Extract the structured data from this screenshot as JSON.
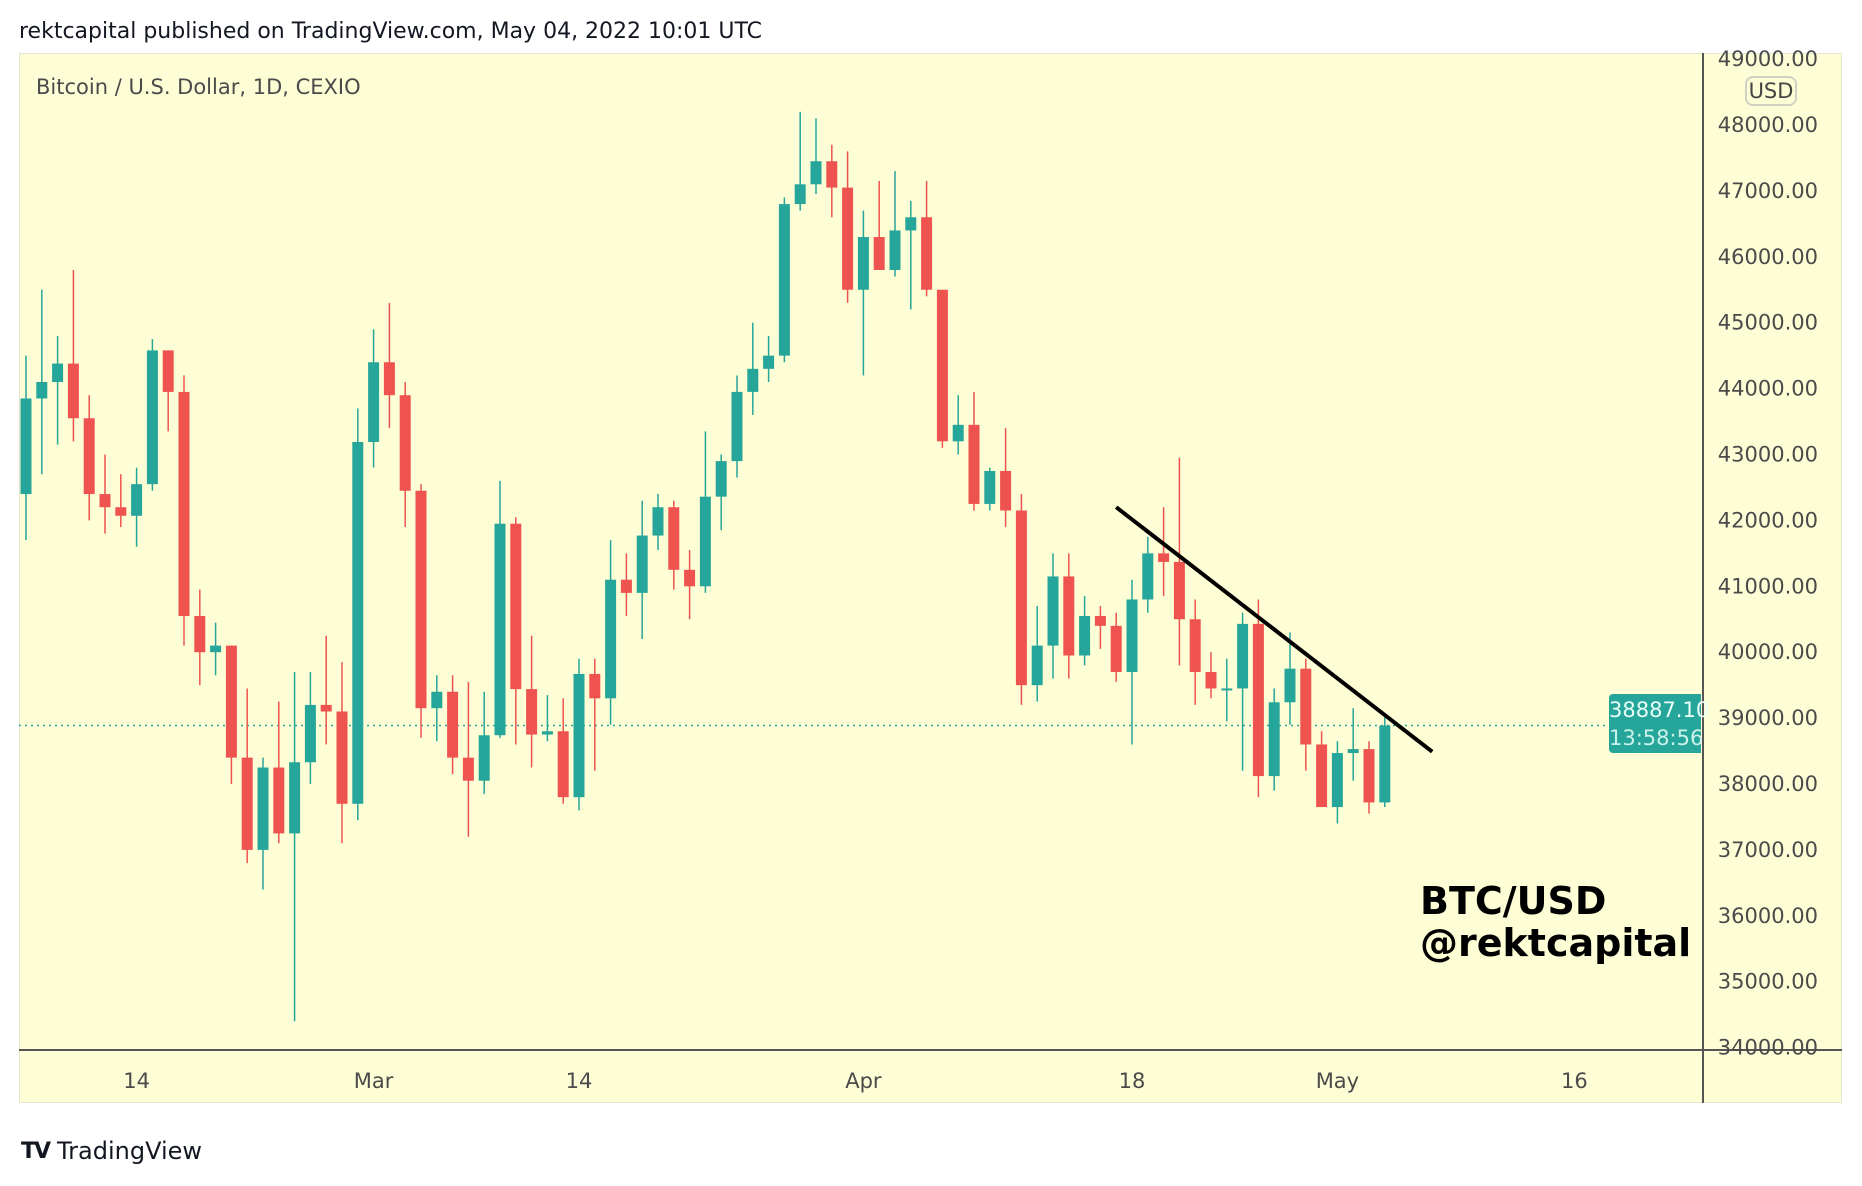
{
  "header": {
    "published": "rektcapital published on TradingView.com, May 04, 2022 10:01 UTC"
  },
  "symbol_title": "Bitcoin / U.S. Dollar, 1D, CEXIO",
  "currency_badge": "USD",
  "last_price": {
    "value": "38887.10",
    "countdown": "13:58:56"
  },
  "signature": {
    "line1": "BTC/USD",
    "line2": "@rektcapital"
  },
  "footer": {
    "brand": "TradingView",
    "logo_mark": "TV"
  },
  "colors": {
    "up": "#26a69a",
    "down": "#ef5350",
    "background": "#fefed6",
    "trendline": "#000000"
  },
  "chart_data": {
    "type": "candlestick",
    "title": "Bitcoin / U.S. Dollar, 1D, CEXIO",
    "start_date": "2022-02-07",
    "interval": "1D",
    "ylim": [
      34000,
      49000
    ],
    "y_ticks": [
      "34000.00",
      "35000.00",
      "36000.00",
      "37000.00",
      "38000.00",
      "39000.00",
      "40000.00",
      "41000.00",
      "42000.00",
      "43000.00",
      "44000.00",
      "45000.00",
      "46000.00",
      "47000.00",
      "48000.00",
      "49000.00"
    ],
    "x_ticks": [
      {
        "label": "14",
        "day_index": 7
      },
      {
        "label": "Mar",
        "day_index": 22
      },
      {
        "label": "14",
        "day_index": 35
      },
      {
        "label": "Apr",
        "day_index": 53
      },
      {
        "label": "18",
        "day_index": 70
      },
      {
        "label": "May",
        "day_index": 83
      },
      {
        "label": "16",
        "day_index": 98
      }
    ],
    "x_range_days": [
      -0.5,
      106.5
    ],
    "ohlc": [
      [
        42400,
        44500,
        41700,
        43850
      ],
      [
        43850,
        45500,
        42700,
        44100
      ],
      [
        44100,
        44800,
        43150,
        44380
      ],
      [
        44380,
        45800,
        43200,
        43550
      ],
      [
        43550,
        43900,
        42000,
        42400
      ],
      [
        42400,
        43000,
        41800,
        42200
      ],
      [
        42200,
        42700,
        41900,
        42070
      ],
      [
        42070,
        42800,
        41600,
        42550
      ],
      [
        42550,
        44750,
        42450,
        44580
      ],
      [
        44580,
        44580,
        43350,
        43950
      ],
      [
        43950,
        44200,
        40100,
        40550
      ],
      [
        40550,
        40950,
        39500,
        40000
      ],
      [
        40000,
        40450,
        39650,
        40100
      ],
      [
        40100,
        40100,
        38000,
        38400
      ],
      [
        38400,
        39450,
        36800,
        37000
      ],
      [
        37000,
        38400,
        36400,
        38250
      ],
      [
        38250,
        39250,
        37100,
        37250
      ],
      [
        37250,
        39700,
        34400,
        38330
      ],
      [
        38330,
        39700,
        38000,
        39200
      ],
      [
        39200,
        40250,
        38600,
        39100
      ],
      [
        39100,
        39850,
        37100,
        37700
      ],
      [
        37700,
        43700,
        37450,
        43190
      ],
      [
        43190,
        44900,
        42800,
        44400
      ],
      [
        44400,
        45300,
        43400,
        43900
      ],
      [
        43900,
        44100,
        41900,
        42450
      ],
      [
        42450,
        42550,
        38700,
        39150
      ],
      [
        39150,
        39650,
        38650,
        39400
      ],
      [
        39400,
        39650,
        38150,
        38400
      ],
      [
        38400,
        39550,
        37200,
        38050
      ],
      [
        38050,
        39400,
        37850,
        38740
      ],
      [
        38740,
        42600,
        38700,
        41950
      ],
      [
        41950,
        42050,
        38600,
        39440
      ],
      [
        39440,
        40250,
        38250,
        38750
      ],
      [
        38750,
        39350,
        38650,
        38800
      ],
      [
        38800,
        39300,
        37700,
        37800
      ],
      [
        37800,
        39900,
        37600,
        39670
      ],
      [
        39670,
        39900,
        38200,
        39300
      ],
      [
        39300,
        41700,
        38900,
        41100
      ],
      [
        41100,
        41500,
        40550,
        40900
      ],
      [
        40900,
        42300,
        40200,
        41770
      ],
      [
        41770,
        42400,
        41550,
        42200
      ],
      [
        42200,
        42300,
        40950,
        41250
      ],
      [
        41250,
        41550,
        40500,
        41000
      ],
      [
        41000,
        43350,
        40900,
        42360
      ],
      [
        42360,
        43000,
        41850,
        42900
      ],
      [
        42900,
        44200,
        42650,
        43950
      ],
      [
        43950,
        45000,
        43600,
        44300
      ],
      [
        44300,
        44800,
        44100,
        44500
      ],
      [
        44500,
        46900,
        44400,
        46800
      ],
      [
        46800,
        48200,
        46700,
        47100
      ],
      [
        47100,
        48100,
        46950,
        47450
      ],
      [
        47450,
        47700,
        46600,
        47050
      ],
      [
        47050,
        47600,
        45300,
        45500
      ],
      [
        45500,
        46700,
        44200,
        46300
      ],
      [
        46300,
        47150,
        45800,
        45800
      ],
      [
        45800,
        47300,
        45700,
        46400
      ],
      [
        46400,
        46850,
        45200,
        46600
      ],
      [
        46600,
        47150,
        45400,
        45500
      ],
      [
        45500,
        45500,
        43100,
        43200
      ],
      [
        43200,
        43900,
        43000,
        43450
      ],
      [
        43450,
        43950,
        42150,
        42250
      ],
      [
        42250,
        42800,
        42150,
        42750
      ],
      [
        42750,
        43400,
        41900,
        42150
      ],
      [
        42150,
        42400,
        39200,
        39500
      ],
      [
        39500,
        40700,
        39250,
        40100
      ],
      [
        40100,
        41500,
        39600,
        41150
      ],
      [
        41150,
        41500,
        39600,
        39950
      ],
      [
        39950,
        40850,
        39800,
        40550
      ],
      [
        40550,
        40700,
        40050,
        40400
      ],
      [
        40400,
        40600,
        39550,
        39700
      ],
      [
        39700,
        41100,
        38600,
        40800
      ],
      [
        40800,
        41750,
        40600,
        41500
      ],
      [
        41500,
        42200,
        40850,
        41370
      ],
      [
        41370,
        42950,
        39800,
        40500
      ],
      [
        40500,
        40800,
        39200,
        39700
      ],
      [
        39700,
        40000,
        39300,
        39450
      ],
      [
        39450,
        39900,
        38950,
        39450
      ],
      [
        39450,
        40600,
        38200,
        40430
      ],
      [
        40430,
        40800,
        37800,
        38120
      ],
      [
        38120,
        39450,
        37900,
        39240
      ],
      [
        39240,
        40300,
        38900,
        39750
      ],
      [
        39750,
        39900,
        38200,
        38600
      ],
      [
        38600,
        38800,
        37650,
        37650
      ],
      [
        37650,
        38650,
        37400,
        38470
      ],
      [
        38470,
        39150,
        38050,
        38530
      ],
      [
        38530,
        38650,
        37550,
        37720
      ],
      [
        37720,
        39050,
        37650,
        38887.1
      ]
    ],
    "last_price": 38887.1,
    "trendline": [
      {
        "day_index": 69,
        "price": 42200
      },
      {
        "day_index": 89,
        "price": 38490
      }
    ]
  }
}
